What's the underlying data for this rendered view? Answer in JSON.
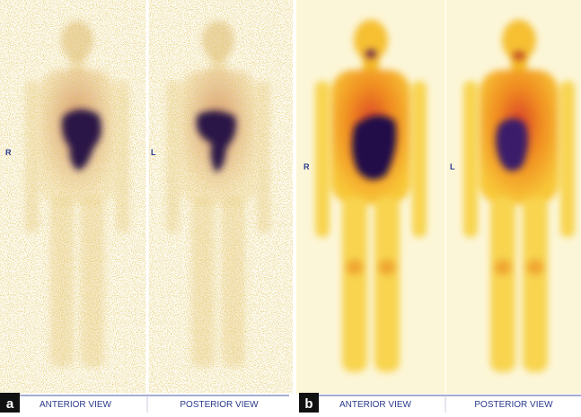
{
  "panels": [
    {
      "label": "a",
      "views": [
        {
          "side": "R",
          "caption": "ANTERIOR VIEW"
        },
        {
          "side": "L",
          "caption": "POSTERIOR VIEW"
        }
      ]
    },
    {
      "label": "b",
      "views": [
        {
          "side": "R",
          "caption": "ANTERIOR VIEW"
        },
        {
          "side": "L",
          "caption": "POSTERIOR VIEW"
        }
      ]
    }
  ]
}
